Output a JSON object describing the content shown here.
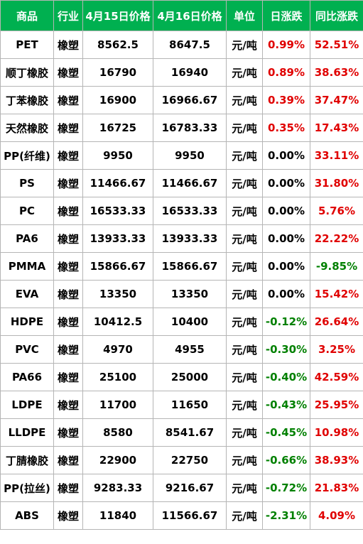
{
  "header": {
    "product": "商品",
    "industry": "行业",
    "price_apr15": "4月15日价格",
    "price_apr16": "4月16日价格",
    "unit": "单位",
    "daily_change": "日涨跌",
    "yoy_change": "同比涨跌"
  },
  "colors": {
    "header_bg": "#00b050",
    "up": "#e00000",
    "down": "#008000"
  },
  "rows": [
    {
      "product": "PET",
      "industry": "橡塑",
      "p15": "8562.5",
      "p16": "8647.5",
      "unit": "元/吨",
      "daily": "0.99%",
      "yoy": "52.51%"
    },
    {
      "product": "顺丁橡胶",
      "industry": "橡塑",
      "p15": "16790",
      "p16": "16940",
      "unit": "元/吨",
      "daily": "0.89%",
      "yoy": "38.63%"
    },
    {
      "product": "丁苯橡胶",
      "industry": "橡塑",
      "p15": "16900",
      "p16": "16966.67",
      "unit": "元/吨",
      "daily": "0.39%",
      "yoy": "37.47%"
    },
    {
      "product": "天然橡胶",
      "industry": "橡塑",
      "p15": "16725",
      "p16": "16783.33",
      "unit": "元/吨",
      "daily": "0.35%",
      "yoy": "17.43%"
    },
    {
      "product": "PP(纤维)",
      "industry": "橡塑",
      "p15": "9950",
      "p16": "9950",
      "unit": "元/吨",
      "daily": "0.00%",
      "yoy": "33.11%"
    },
    {
      "product": "PS",
      "industry": "橡塑",
      "p15": "11466.67",
      "p16": "11466.67",
      "unit": "元/吨",
      "daily": "0.00%",
      "yoy": "31.80%"
    },
    {
      "product": "PC",
      "industry": "橡塑",
      "p15": "16533.33",
      "p16": "16533.33",
      "unit": "元/吨",
      "daily": "0.00%",
      "yoy": "5.76%"
    },
    {
      "product": "PA6",
      "industry": "橡塑",
      "p15": "13933.33",
      "p16": "13933.33",
      "unit": "元/吨",
      "daily": "0.00%",
      "yoy": "22.22%"
    },
    {
      "product": "PMMA",
      "industry": "橡塑",
      "p15": "15866.67",
      "p16": "15866.67",
      "unit": "元/吨",
      "daily": "0.00%",
      "yoy": "-9.85%"
    },
    {
      "product": "EVA",
      "industry": "橡塑",
      "p15": "13350",
      "p16": "13350",
      "unit": "元/吨",
      "daily": "0.00%",
      "yoy": "15.42%"
    },
    {
      "product": "HDPE",
      "industry": "橡塑",
      "p15": "10412.5",
      "p16": "10400",
      "unit": "元/吨",
      "daily": "-0.12%",
      "yoy": "26.64%"
    },
    {
      "product": "PVC",
      "industry": "橡塑",
      "p15": "4970",
      "p16": "4955",
      "unit": "元/吨",
      "daily": "-0.30%",
      "yoy": "3.25%"
    },
    {
      "product": "PA66",
      "industry": "橡塑",
      "p15": "25100",
      "p16": "25000",
      "unit": "元/吨",
      "daily": "-0.40%",
      "yoy": "42.59%"
    },
    {
      "product": "LDPE",
      "industry": "橡塑",
      "p15": "11700",
      "p16": "11650",
      "unit": "元/吨",
      "daily": "-0.43%",
      "yoy": "25.95%"
    },
    {
      "product": "LLDPE",
      "industry": "橡塑",
      "p15": "8580",
      "p16": "8541.67",
      "unit": "元/吨",
      "daily": "-0.45%",
      "yoy": "10.98%"
    },
    {
      "product": "丁腈橡胶",
      "industry": "橡塑",
      "p15": "22900",
      "p16": "22750",
      "unit": "元/吨",
      "daily": "-0.66%",
      "yoy": "38.93%"
    },
    {
      "product": "PP(拉丝)",
      "industry": "橡塑",
      "p15": "9283.33",
      "p16": "9216.67",
      "unit": "元/吨",
      "daily": "-0.72%",
      "yoy": "21.83%"
    },
    {
      "product": "ABS",
      "industry": "橡塑",
      "p15": "11840",
      "p16": "11566.67",
      "unit": "元/吨",
      "daily": "-2.31%",
      "yoy": "4.09%"
    }
  ]
}
